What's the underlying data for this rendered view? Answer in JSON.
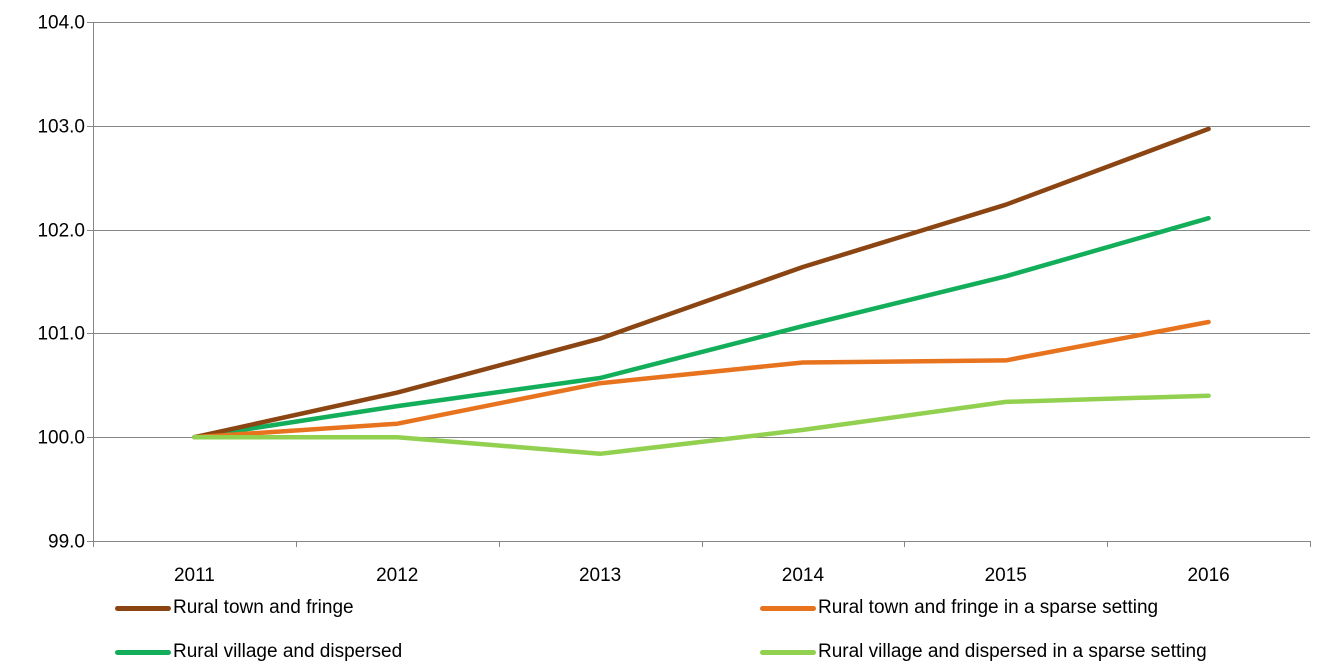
{
  "chart_data": {
    "type": "line",
    "title": "",
    "xlabel": "",
    "ylabel": "",
    "categories": [
      "2011",
      "2012",
      "2013",
      "2014",
      "2015",
      "2016"
    ],
    "ylim": [
      99.0,
      104.0
    ],
    "yticks": [
      "99.0",
      "100.0",
      "101.0",
      "102.0",
      "103.0",
      "104.0"
    ],
    "grid": "horizontal",
    "legend_position": "bottom",
    "series": [
      {
        "name": "Rural town and fringe",
        "color": "#8B4513",
        "values": [
          100.0,
          100.43,
          100.95,
          101.64,
          102.24,
          102.97
        ]
      },
      {
        "name": "Rural town and fringe in a sparse setting",
        "color": "#E8731E",
        "values": [
          100.0,
          100.13,
          100.52,
          100.72,
          100.74,
          101.11
        ]
      },
      {
        "name": "Rural village and dispersed",
        "color": "#12AE5A",
        "values": [
          100.0,
          100.3,
          100.57,
          101.07,
          101.55,
          102.11
        ]
      },
      {
        "name": "Rural village and dispersed in a sparse setting",
        "color": "#92D050",
        "values": [
          100.0,
          100.0,
          99.84,
          100.07,
          100.34,
          100.4
        ]
      }
    ]
  }
}
